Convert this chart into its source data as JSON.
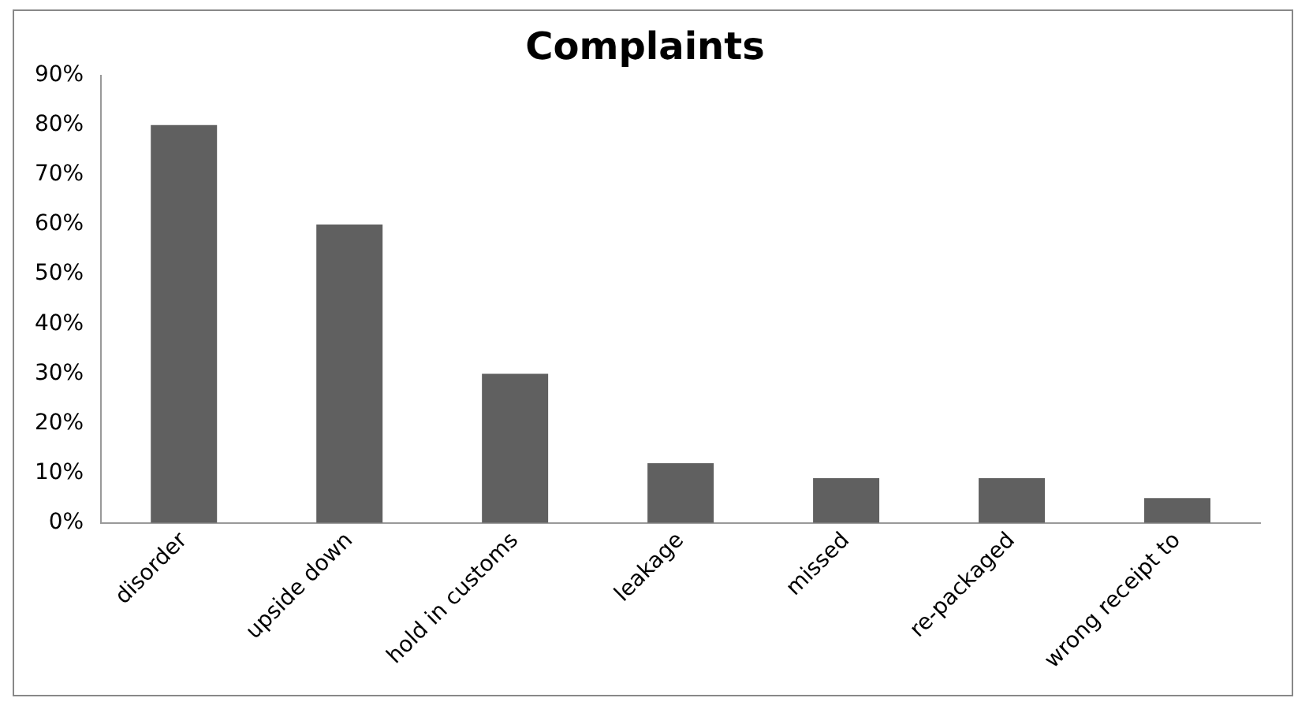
{
  "chart_data": {
    "type": "bar",
    "title": "Complaints",
    "categories": [
      "disorder",
      "upside down",
      "hold in customs",
      "leakage",
      "missed",
      "re-packaged",
      "wrong receipt to"
    ],
    "values": [
      80,
      60,
      30,
      12,
      9,
      9,
      5
    ],
    "color": "#606060",
    "ylim": [
      0,
      90
    ],
    "yticks": [
      {
        "value": 0,
        "label": "0%"
      },
      {
        "value": 10,
        "label": "10%"
      },
      {
        "value": 20,
        "label": "20%"
      },
      {
        "value": 30,
        "label": "30%"
      },
      {
        "value": 40,
        "label": "40%"
      },
      {
        "value": 50,
        "label": "50%"
      },
      {
        "value": 60,
        "label": "60%"
      },
      {
        "value": 70,
        "label": "70%"
      },
      {
        "value": 80,
        "label": "80%"
      },
      {
        "value": 90,
        "label": "90%"
      }
    ],
    "grid": false,
    "legend": false
  }
}
